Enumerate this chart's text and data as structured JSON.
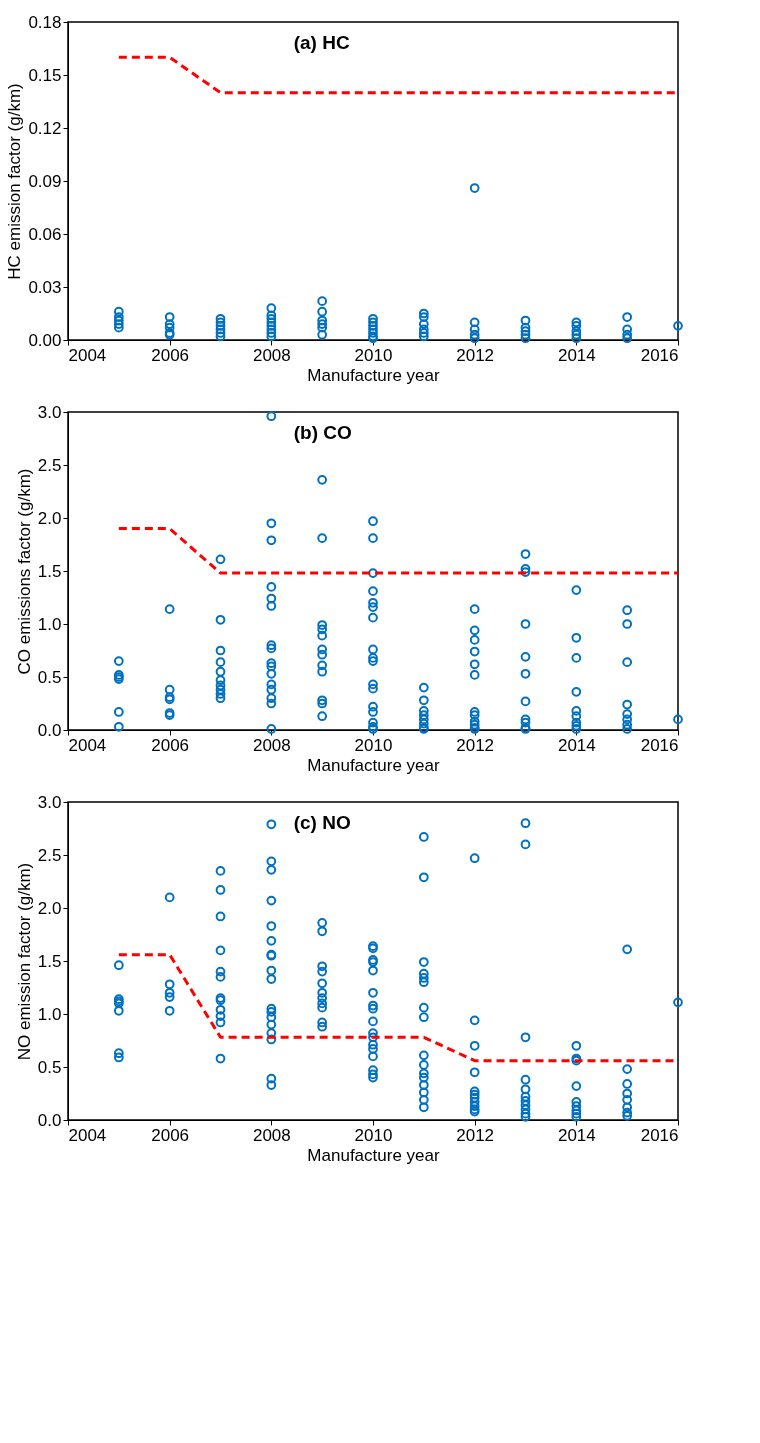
{
  "chart_data": [
    {
      "type": "scatter",
      "title": "(a) HC",
      "xlabel": "Manufacture year",
      "ylabel": "HC emission factor (g/km)",
      "xlim": [
        2004,
        2016
      ],
      "xticks": [
        2004,
        2006,
        2008,
        2010,
        2012,
        2014,
        2016
      ],
      "ylim": [
        0,
        0.18
      ],
      "yticks": [
        {
          "value": 0,
          "label": "0.00"
        },
        {
          "value": 0.03,
          "label": "0.03"
        },
        {
          "value": 0.06,
          "label": "0.06"
        },
        {
          "value": 0.09,
          "label": "0.09"
        },
        {
          "value": 0.12,
          "label": "0.12"
        },
        {
          "value": 0.15,
          "label": "0.15"
        },
        {
          "value": 0.18,
          "label": "0.18"
        }
      ],
      "grid": false,
      "series": [
        {
          "color": "#0070c0",
          "marker": "circle",
          "x": [
            2005,
            2005,
            2005,
            2005,
            2005,
            2006,
            2006,
            2006,
            2006,
            2006,
            2007,
            2007,
            2007,
            2007,
            2007,
            2007,
            2008,
            2008,
            2008,
            2008,
            2008,
            2008,
            2008,
            2008,
            2009,
            2009,
            2009,
            2009,
            2009,
            2009,
            2010,
            2010,
            2010,
            2010,
            2010,
            2010,
            2010,
            2011,
            2011,
            2011,
            2011,
            2011,
            2011,
            2012,
            2012,
            2012,
            2012,
            2012,
            2013,
            2013,
            2013,
            2013,
            2013,
            2014,
            2014,
            2014,
            2014,
            2014,
            2015,
            2015,
            2015,
            2015,
            2016
          ],
          "values": [
            0.016,
            0.013,
            0.011,
            0.009,
            0.007,
            0.013,
            0.009,
            0.007,
            0.004,
            0.003,
            0.012,
            0.01,
            0.008,
            0.006,
            0.004,
            0.002,
            0.018,
            0.014,
            0.012,
            0.01,
            0.008,
            0.006,
            0.004,
            0.002,
            0.022,
            0.016,
            0.011,
            0.009,
            0.007,
            0.003,
            0.012,
            0.01,
            0.008,
            0.006,
            0.004,
            0.002,
            0.001,
            0.015,
            0.013,
            0.009,
            0.006,
            0.004,
            0.002,
            0.086,
            0.01,
            0.006,
            0.003,
            0.001,
            0.011,
            0.007,
            0.005,
            0.003,
            0.001,
            0.01,
            0.008,
            0.005,
            0.003,
            0.001,
            0.013,
            0.006,
            0.003,
            0.001,
            0.008
          ]
        },
        {
          "type": "line",
          "color": "#ff0000",
          "line_style": "dashed",
          "x": [
            2005,
            2006,
            2007,
            2016
          ],
          "values": [
            0.16,
            0.16,
            0.14,
            0.14
          ]
        }
      ]
    },
    {
      "type": "scatter",
      "title": "(b) CO",
      "xlabel": "Manufacture year",
      "ylabel": "CO emissions factor (g/km)",
      "xlim": [
        2004,
        2016
      ],
      "xticks": [
        2004,
        2006,
        2008,
        2010,
        2012,
        2014,
        2016
      ],
      "ylim": [
        0,
        3
      ],
      "yticks": [
        {
          "value": 0,
          "label": "0.0"
        },
        {
          "value": 0.5,
          "label": "0.5"
        },
        {
          "value": 1,
          "label": "1.0"
        },
        {
          "value": 1.5,
          "label": "1.5"
        },
        {
          "value": 2,
          "label": "2.0"
        },
        {
          "value": 2.5,
          "label": "2.5"
        },
        {
          "value": 3,
          "label": "3.0"
        }
      ],
      "grid": false,
      "series": [
        {
          "color": "#0070c0",
          "marker": "circle",
          "x": [
            2005,
            2005,
            2005,
            2005,
            2005,
            2005,
            2006,
            2006,
            2006,
            2006,
            2006,
            2006,
            2007,
            2007,
            2007,
            2007,
            2007,
            2007,
            2007,
            2007,
            2007,
            2007,
            2008,
            2008,
            2008,
            2008,
            2008,
            2008,
            2008,
            2008,
            2008,
            2008,
            2008,
            2008,
            2008,
            2008,
            2008,
            2008,
            2009,
            2009,
            2009,
            2009,
            2009,
            2009,
            2009,
            2009,
            2009,
            2009,
            2009,
            2009,
            2010,
            2010,
            2010,
            2010,
            2010,
            2010,
            2010,
            2010,
            2010,
            2010,
            2010,
            2010,
            2010,
            2010,
            2010,
            2010,
            2010,
            2011,
            2011,
            2011,
            2011,
            2011,
            2011,
            2011,
            2011,
            2012,
            2012,
            2012,
            2012,
            2012,
            2012,
            2012,
            2012,
            2012,
            2012,
            2012,
            2012,
            2013,
            2013,
            2013,
            2013,
            2013,
            2013,
            2013,
            2013,
            2013,
            2013,
            2013,
            2014,
            2014,
            2014,
            2014,
            2014,
            2014,
            2014,
            2014,
            2014,
            2015,
            2015,
            2015,
            2015,
            2015,
            2015,
            2015,
            2015,
            2016
          ],
          "values": [
            0.65,
            0.52,
            0.5,
            0.48,
            0.17,
            0.03,
            1.14,
            0.38,
            0.31,
            0.29,
            0.16,
            0.14,
            1.61,
            1.04,
            0.75,
            0.64,
            0.55,
            0.47,
            0.42,
            0.38,
            0.34,
            0.3,
            2.96,
            1.95,
            1.79,
            1.35,
            1.24,
            1.17,
            0.8,
            0.77,
            0.63,
            0.6,
            0.53,
            0.43,
            0.38,
            0.3,
            0.25,
            0.01,
            2.36,
            1.81,
            0.99,
            0.95,
            0.89,
            0.76,
            0.71,
            0.61,
            0.55,
            0.28,
            0.25,
            0.13,
            1.97,
            1.81,
            1.48,
            1.31,
            1.2,
            1.16,
            1.06,
            0.76,
            0.68,
            0.65,
            0.43,
            0.39,
            0.22,
            0.17,
            0.07,
            0.03,
            0.01,
            0.4,
            0.28,
            0.18,
            0.14,
            0.1,
            0.06,
            0.02,
            0.01,
            1.14,
            0.94,
            0.85,
            0.74,
            0.62,
            0.52,
            0.17,
            0.14,
            0.08,
            0.05,
            0.02,
            0.01,
            1.66,
            1.52,
            1.49,
            1.0,
            0.69,
            0.53,
            0.27,
            0.1,
            0.07,
            0.02,
            0.01,
            1.32,
            0.87,
            0.68,
            0.36,
            0.18,
            0.13,
            0.07,
            0.04,
            0.01,
            1.13,
            1.0,
            0.64,
            0.24,
            0.15,
            0.1,
            0.05,
            0.01,
            0.1
          ]
        },
        {
          "type": "line",
          "color": "#ff0000",
          "line_style": "dashed",
          "x": [
            2005,
            2006,
            2007,
            2016
          ],
          "values": [
            1.9,
            1.9,
            1.48,
            1.48
          ]
        }
      ]
    },
    {
      "type": "scatter",
      "title": "(c) NO",
      "xlabel": "Manufacture year",
      "ylabel": "NO emission factor (g/km)",
      "xlim": [
        2004,
        2016
      ],
      "xticks": [
        2004,
        2006,
        2008,
        2010,
        2012,
        2014,
        2016
      ],
      "ylim": [
        0,
        3
      ],
      "yticks": [
        {
          "value": 0,
          "label": "0.0"
        },
        {
          "value": 0.5,
          "label": "0.5"
        },
        {
          "value": 1,
          "label": "1.0"
        },
        {
          "value": 1.5,
          "label": "1.5"
        },
        {
          "value": 2,
          "label": "2.0"
        },
        {
          "value": 2.5,
          "label": "2.5"
        },
        {
          "value": 3,
          "label": "3.0"
        }
      ],
      "grid": false,
      "series": [
        {
          "color": "#0070c0",
          "marker": "circle",
          "x": [
            2005,
            2005,
            2005,
            2005,
            2005,
            2005,
            2005,
            2006,
            2006,
            2006,
            2006,
            2006,
            2007,
            2007,
            2007,
            2007,
            2007,
            2007,
            2007,
            2007,
            2007,
            2007,
            2007,
            2007,
            2008,
            2008,
            2008,
            2008,
            2008,
            2008,
            2008,
            2008,
            2008,
            2008,
            2008,
            2008,
            2008,
            2008,
            2008,
            2008,
            2008,
            2008,
            2009,
            2009,
            2009,
            2009,
            2009,
            2009,
            2009,
            2009,
            2009,
            2009,
            2009,
            2010,
            2010,
            2010,
            2010,
            2010,
            2010,
            2010,
            2010,
            2010,
            2010,
            2010,
            2010,
            2010,
            2010,
            2010,
            2010,
            2010,
            2011,
            2011,
            2011,
            2011,
            2011,
            2011,
            2011,
            2011,
            2011,
            2011,
            2011,
            2011,
            2011,
            2011,
            2011,
            2011,
            2012,
            2012,
            2012,
            2012,
            2012,
            2012,
            2012,
            2012,
            2012,
            2012,
            2012,
            2013,
            2013,
            2013,
            2013,
            2013,
            2013,
            2013,
            2013,
            2013,
            2013,
            2013,
            2014,
            2014,
            2014,
            2014,
            2014,
            2014,
            2014,
            2014,
            2014,
            2015,
            2015,
            2015,
            2015,
            2015,
            2015,
            2015,
            2015,
            2016
          ],
          "values": [
            1.46,
            1.14,
            1.12,
            1.1,
            1.03,
            0.63,
            0.59,
            2.1,
            1.28,
            1.2,
            1.16,
            1.03,
            2.35,
            2.17,
            1.92,
            1.6,
            1.4,
            1.35,
            1.15,
            1.13,
            1.04,
            0.98,
            0.92,
            0.58,
            2.79,
            2.44,
            2.36,
            2.07,
            1.83,
            1.69,
            1.56,
            1.55,
            1.41,
            1.33,
            1.05,
            1.02,
            0.97,
            0.9,
            0.82,
            0.76,
            0.39,
            0.33,
            1.86,
            1.78,
            1.45,
            1.4,
            1.29,
            1.2,
            1.15,
            1.1,
            1.06,
            0.92,
            0.88,
            1.64,
            1.62,
            1.51,
            1.49,
            1.41,
            1.2,
            1.08,
            1.05,
            0.93,
            0.82,
            0.78,
            0.71,
            0.67,
            0.6,
            0.47,
            0.43,
            0.4,
            2.67,
            2.29,
            1.49,
            1.38,
            1.34,
            1.3,
            1.06,
            0.97,
            0.61,
            0.52,
            0.44,
            0.4,
            0.33,
            0.26,
            0.19,
            0.12,
            2.47,
            0.94,
            0.7,
            0.45,
            0.27,
            0.24,
            0.21,
            0.17,
            0.13,
            0.1,
            0.08,
            2.8,
            2.6,
            0.78,
            0.38,
            0.29,
            0.22,
            0.18,
            0.14,
            0.1,
            0.06,
            0.03,
            0.7,
            0.58,
            0.56,
            0.32,
            0.17,
            0.13,
            0.09,
            0.06,
            0.03,
            1.61,
            0.48,
            0.34,
            0.25,
            0.19,
            0.12,
            0.07,
            0.04,
            1.11
          ]
        },
        {
          "type": "line",
          "color": "#ff0000",
          "line_style": "dashed",
          "x": [
            2005,
            2006,
            2007,
            2011,
            2012,
            2016
          ],
          "values": [
            1.56,
            1.56,
            0.78,
            0.78,
            0.56,
            0.56
          ]
        }
      ]
    }
  ]
}
